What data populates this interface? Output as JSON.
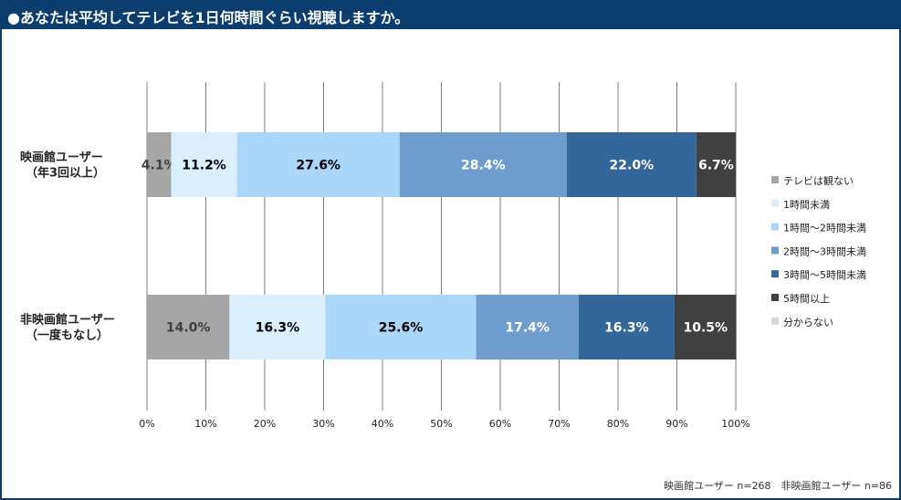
{
  "header": {
    "title": "●あなたは平均してテレビを1日何時間ぐらい視聴しますか。"
  },
  "footnote": "映画館ユーザー n=268　非映画館ユーザー n=86",
  "chart_data": {
    "type": "bar",
    "orientation": "horizontal",
    "stacked": "percent",
    "categories": [
      [
        "映画館ユーザー",
        "（年3回以上）"
      ],
      [
        "非映画館ユーザー",
        "（一度もなし）"
      ]
    ],
    "series": [
      {
        "name": "テレビは観ない",
        "color": "#a6a6a6",
        "label_color": "#404040",
        "values": [
          4.1,
          14.0
        ]
      },
      {
        "name": "1時間未満",
        "color": "#daeefc",
        "label_color": "#000000",
        "values": [
          11.2,
          16.3
        ]
      },
      {
        "name": "1時間～2時間未満",
        "color": "#a9d6f9",
        "label_color": "#000000",
        "values": [
          27.6,
          25.6
        ]
      },
      {
        "name": "2時間～3時間未満",
        "color": "#6e9ccc",
        "label_color": "#ffffff",
        "values": [
          28.4,
          17.4
        ]
      },
      {
        "name": "3時間～5時間未満",
        "color": "#336699",
        "label_color": "#ffffff",
        "values": [
          22.0,
          16.3
        ]
      },
      {
        "name": "5時間以上",
        "color": "#404040",
        "label_color": "#ffffff",
        "values": [
          6.7,
          10.5
        ]
      },
      {
        "name": "分からない",
        "color": "#d0d8e8",
        "label_color": "#000000",
        "values": [
          0,
          0
        ]
      }
    ],
    "value_labels": [
      [
        "4.1%",
        "11.2%",
        "27.6%",
        "28.4%",
        "22.0%",
        "6.7%",
        ""
      ],
      [
        "14.0%",
        "16.3%",
        "25.6%",
        "17.4%",
        "16.3%",
        "10.5%",
        ""
      ]
    ],
    "x_ticks": [
      "0%",
      "10%",
      "20%",
      "30%",
      "40%",
      "50%",
      "60%",
      "70%",
      "80%",
      "90%",
      "100%"
    ],
    "xlim": [
      0,
      100
    ],
    "grid": "vertical",
    "legend_position": "right"
  }
}
